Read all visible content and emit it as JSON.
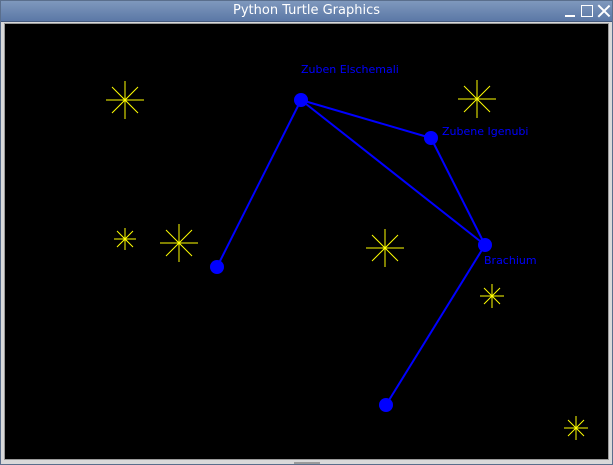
{
  "window": {
    "title": "Python Turtle Graphics",
    "controls": [
      "minimize-icon",
      "maximize-icon",
      "close-icon"
    ]
  },
  "colors": {
    "background": "#000000",
    "stars": "#ffff00",
    "constellation": "#0000ff"
  },
  "stars": [
    {
      "name": "Zuben Elschemali",
      "label": "Zuben Elschemali"
    },
    {
      "name": "Zubene Igenubi",
      "label": "Zubene Igenubi"
    },
    {
      "name": "Brachium",
      "label": "Brachium"
    },
    {
      "name": "unnamed-left",
      "label": ""
    },
    {
      "name": "unnamed-bottom",
      "label": ""
    }
  ]
}
